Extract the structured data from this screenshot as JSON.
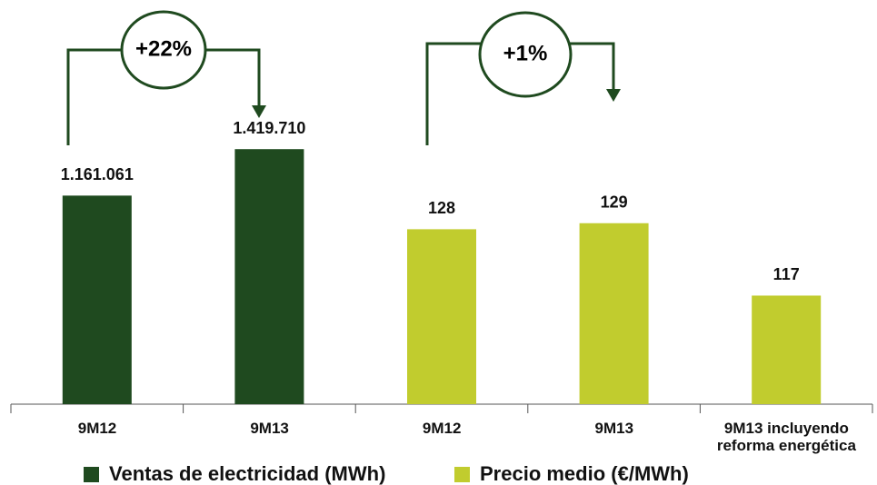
{
  "chart_data": {
    "type": "bar",
    "categories": [
      "9M12",
      "9M13",
      "9M12",
      "9M13",
      "9M13 incluyendo reforma energética"
    ],
    "series": [
      {
        "name": "Ventas de electricidad (MWh)",
        "color": "#1f4a1f",
        "values": [
          1161061,
          1419710,
          null,
          null,
          null
        ],
        "value_labels": [
          "1.161.061",
          "1.419.710",
          null,
          null,
          null
        ]
      },
      {
        "name": "Precio medio (€/MWh)",
        "color": "#c1cc2e",
        "axis": "y2",
        "values": [
          null,
          null,
          128,
          129,
          117
        ]
      }
    ],
    "ylim": [
      0,
      2250000
    ],
    "y2lim": [
      99,
      166
    ],
    "annotations": [
      "+22%",
      "+1%"
    ]
  }
}
